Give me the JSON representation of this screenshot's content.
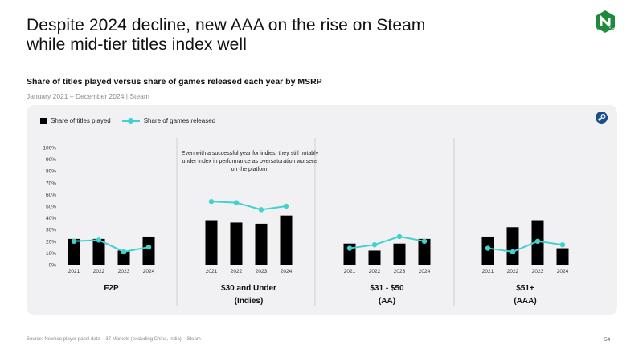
{
  "header": {
    "title": "Despite 2024 decline, new AAA on the rise on Steam while mid-tier titles index well",
    "subtitle": "Share of titles played versus share of games released each year by MSRP",
    "date_range": "January 2021 – December 2024 | Steam",
    "logo_text": "NEWZOO"
  },
  "legend": {
    "bar_label": "Share of titles played",
    "line_label": "Share of games released"
  },
  "footer": {
    "source": "Source: Newzoo player panel data – 37 Markets (excluding China, India) – Steam",
    "page_number": "54"
  },
  "colors": {
    "bar": "#000000",
    "line": "#41d1cf",
    "panel": "#f1f1f3"
  },
  "annotation": "Even with a successful year for indies, they still notably under index in performance as oversaturation worsens on the platform",
  "chart_data": {
    "type": "bar",
    "title": "Share of titles played versus share of games released each year by MSRP",
    "ylim": [
      0,
      100
    ],
    "y_ticks": [
      "0%",
      "10%",
      "20%",
      "30%",
      "40%",
      "50%",
      "60%",
      "70%",
      "80%",
      "90%",
      "100%"
    ],
    "categories": [
      "2021",
      "2022",
      "2023",
      "2024"
    ],
    "groups": [
      {
        "name": "F2P",
        "sublabel": "",
        "bars": [
          22,
          22,
          12,
          24
        ],
        "line": [
          20,
          21,
          11,
          15
        ]
      },
      {
        "name": "$30 and Under",
        "sublabel": "(Indies)",
        "bars": [
          38,
          36,
          35,
          42
        ],
        "line": [
          54,
          53,
          47,
          50
        ]
      },
      {
        "name": "$31 - $50",
        "sublabel": "(AA)",
        "bars": [
          18,
          12,
          18,
          22
        ],
        "line": [
          14,
          17,
          24,
          20
        ]
      },
      {
        "name": "$51+",
        "sublabel": "(AAA)",
        "bars": [
          24,
          32,
          38,
          14
        ],
        "line": [
          14,
          11,
          20,
          17
        ]
      }
    ]
  }
}
